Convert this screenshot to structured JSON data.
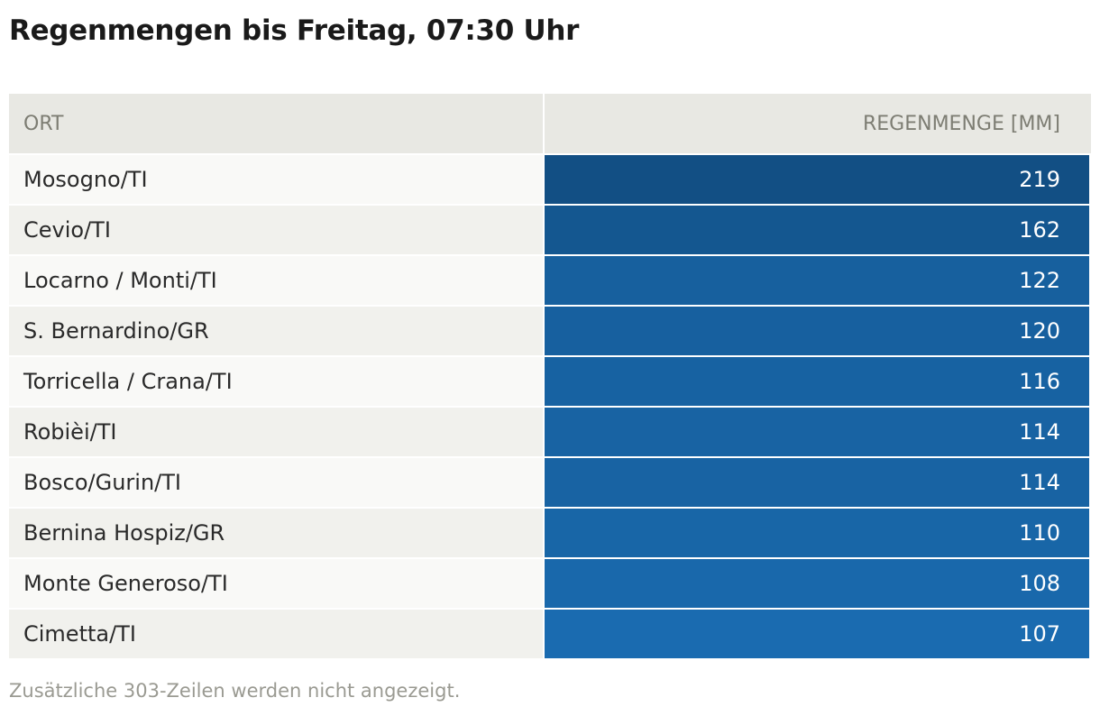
{
  "title": "Regenmengen bis Freitag, 07:30 Uhr",
  "footnote": "Zusätzliche 303-Zeilen werden nicht angezeigt.",
  "colors": {
    "scale_low": "#1a6bb0",
    "scale_high": "#124f84"
  },
  "chart_data": {
    "type": "table",
    "title": "Regenmengen bis Freitag, 07:30 Uhr",
    "columns": [
      "ORT",
      "REGENMENGE [MM]"
    ],
    "rows": [
      {
        "place": "Mosogno/TI",
        "value": 219
      },
      {
        "place": "Cevio/TI",
        "value": 162
      },
      {
        "place": "Locarno / Monti/TI",
        "value": 122
      },
      {
        "place": "S. Bernardino/GR",
        "value": 120
      },
      {
        "place": "Torricella / Crana/TI",
        "value": 116
      },
      {
        "place": "Robièi/TI",
        "value": 114
      },
      {
        "place": "Bosco/Gurin/TI",
        "value": 114
      },
      {
        "place": "Bernina Hospiz/GR",
        "value": 110
      },
      {
        "place": "Monte Generoso/TI",
        "value": 108
      },
      {
        "place": "Cimetta/TI",
        "value": 107
      }
    ]
  }
}
